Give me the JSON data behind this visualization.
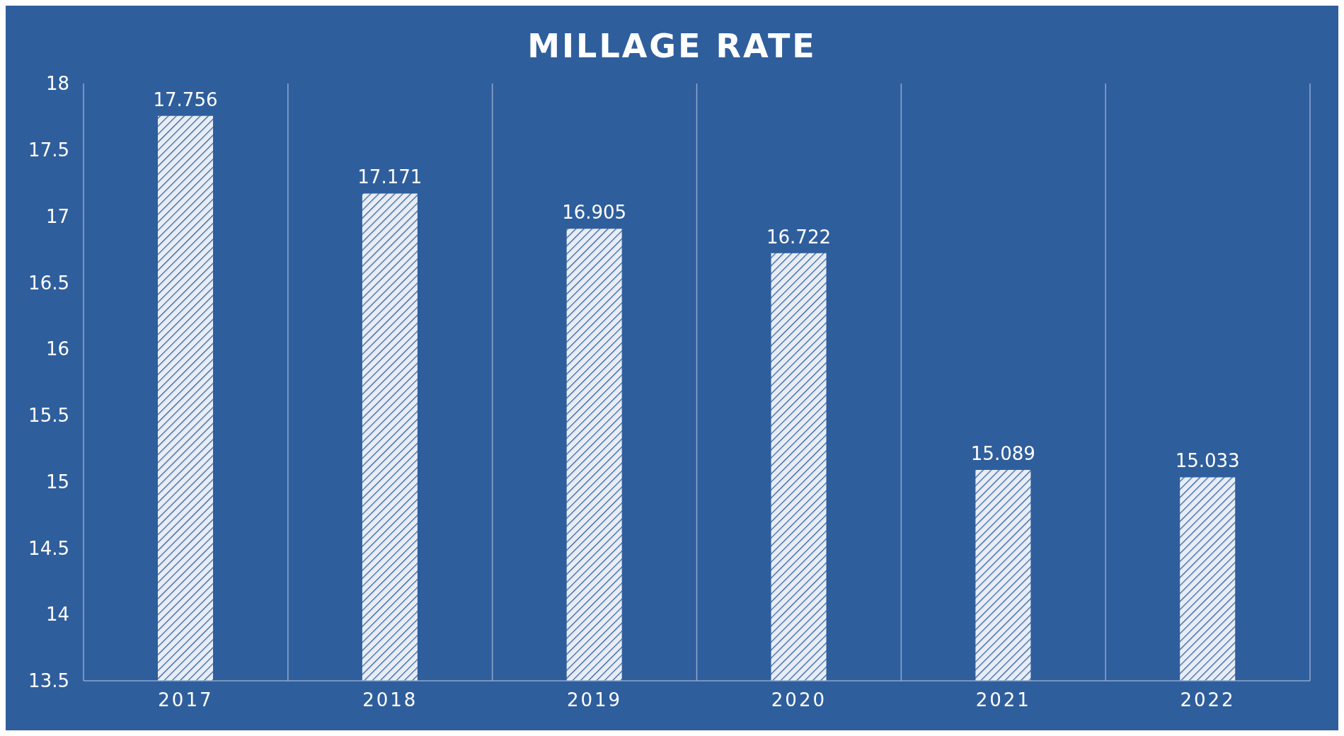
{
  "chart_data": {
    "type": "bar",
    "title": "MILLAGE RATE",
    "categories": [
      "2017",
      "2018",
      "2019",
      "2020",
      "2021",
      "2022"
    ],
    "values": [
      17.756,
      17.171,
      16.905,
      16.722,
      15.089,
      15.033
    ],
    "color": "#e8edf5",
    "ylim": [
      13.5,
      18
    ],
    "yticks": [
      13.5,
      14,
      14.5,
      15,
      15.5,
      16,
      16.5,
      17,
      17.5,
      18
    ],
    "grid": "x",
    "data_labels": true
  }
}
